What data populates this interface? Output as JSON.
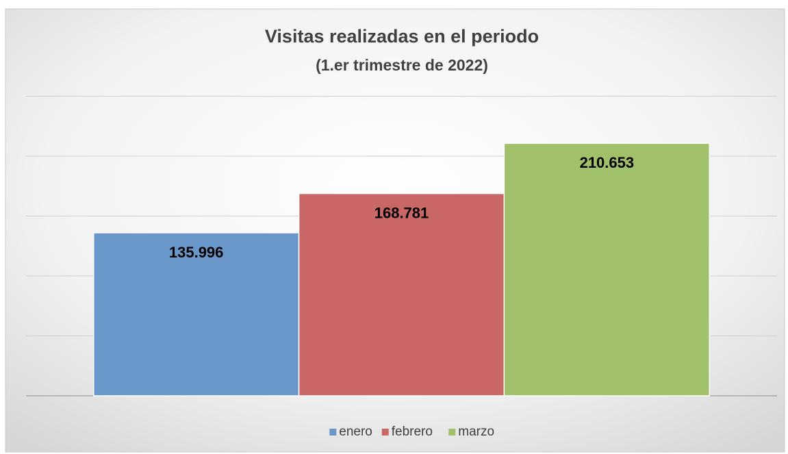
{
  "chart_data": {
    "type": "bar",
    "title": "Visitas realizadas en el periodo",
    "subtitle": "(1.er trimestre de 2022)",
    "categories": [
      null
    ],
    "series": [
      {
        "name": "enero",
        "color": "#6a97c9",
        "values": [
          135996
        ],
        "value_labels": [
          "135.996"
        ]
      },
      {
        "name": "febrero",
        "color": "#c96666",
        "values": [
          168781
        ],
        "value_labels": [
          "168.781"
        ]
      },
      {
        "name": "marzo",
        "color": "#a0c06a",
        "values": [
          210653
        ],
        "value_labels": [
          "210.653"
        ]
      }
    ],
    "ylim": [
      0,
      250000
    ],
    "yticks": [
      0,
      50000,
      100000,
      150000,
      200000,
      250000
    ],
    "grid": true,
    "legend": "bottom"
  }
}
